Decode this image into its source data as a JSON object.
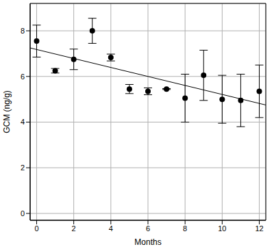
{
  "chart_data": {
    "type": "scatter",
    "x_label": "Months",
    "y_label": "GCM (ng/g)",
    "x": [
      0,
      1,
      2,
      3,
      4,
      5,
      6,
      7,
      8,
      9,
      10,
      11,
      12
    ],
    "values": [
      7.55,
      6.25,
      6.75,
      8.0,
      6.83,
      5.45,
      5.35,
      5.45,
      5.05,
      6.05,
      5.0,
      4.95,
      5.35
    ],
    "errors": [
      0.7,
      0.1,
      0.45,
      0.55,
      0.15,
      0.2,
      0.15,
      0.02,
      1.05,
      1.1,
      1.05,
      1.15,
      1.15
    ],
    "color": "#000000",
    "marker": "circle",
    "line_style": "solid",
    "xlim": [
      -0.35,
      12.35
    ],
    "ylim": [
      -0.3,
      9.2
    ],
    "xticks": [
      0,
      2,
      4,
      6,
      8,
      10,
      12
    ],
    "yticks": [
      0,
      2,
      4,
      6,
      8
    ],
    "grid": true,
    "trend_line": {
      "x": [
        -0.35,
        12.35
      ],
      "values": [
        7.25,
        4.75
      ]
    }
  }
}
